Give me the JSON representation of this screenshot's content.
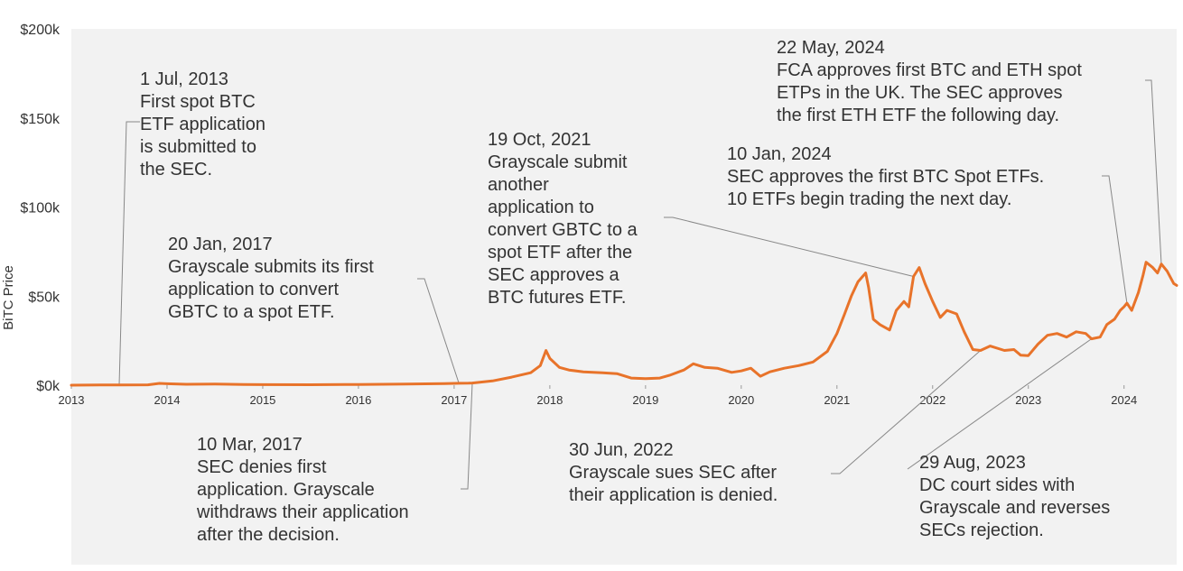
{
  "chart_data": {
    "type": "line",
    "title": "",
    "xlabel": "",
    "ylabel": "BiTC Price",
    "x_ticks": [
      "2013",
      "2014",
      "2015",
      "2016",
      "2017",
      "2018",
      "2019",
      "2020",
      "2021",
      "2022",
      "2023",
      "2024"
    ],
    "y_ticks": [
      "$0k",
      "$50k",
      "$100k",
      "$150k",
      "$200k"
    ],
    "xlim": [
      2013.0,
      2024.55
    ],
    "ylim": [
      0,
      200000
    ],
    "grid": false,
    "colors": {
      "line": "#e8732a",
      "panel": "#f2f2f2",
      "text": "#333333",
      "leader": "#888888"
    },
    "series": [
      {
        "name": "",
        "points": [
          [
            2013.0,
            13
          ],
          [
            2013.3,
            120
          ],
          [
            2013.5,
            80
          ],
          [
            2013.8,
            200
          ],
          [
            2013.92,
            1000
          ],
          [
            2014.0,
            800
          ],
          [
            2014.2,
            500
          ],
          [
            2014.5,
            600
          ],
          [
            2014.8,
            400
          ],
          [
            2015.0,
            300
          ],
          [
            2015.5,
            250
          ],
          [
            2016.0,
            430
          ],
          [
            2016.5,
            650
          ],
          [
            2016.9,
            900
          ],
          [
            2017.0,
            1000
          ],
          [
            2017.15,
            1100
          ],
          [
            2017.19,
            1200
          ],
          [
            2017.4,
            2400
          ],
          [
            2017.6,
            4500
          ],
          [
            2017.8,
            7000
          ],
          [
            2017.9,
            11000
          ],
          [
            2017.96,
            19500
          ],
          [
            2018.0,
            15000
          ],
          [
            2018.1,
            10000
          ],
          [
            2018.2,
            8500
          ],
          [
            2018.35,
            7500
          ],
          [
            2018.55,
            7000
          ],
          [
            2018.7,
            6500
          ],
          [
            2018.85,
            4000
          ],
          [
            2019.0,
            3700
          ],
          [
            2019.15,
            4000
          ],
          [
            2019.25,
            5500
          ],
          [
            2019.4,
            8500
          ],
          [
            2019.5,
            12000
          ],
          [
            2019.62,
            10000
          ],
          [
            2019.75,
            9500
          ],
          [
            2019.9,
            7200
          ],
          [
            2020.0,
            8000
          ],
          [
            2020.1,
            9500
          ],
          [
            2020.2,
            5000
          ],
          [
            2020.3,
            7500
          ],
          [
            2020.45,
            9500
          ],
          [
            2020.6,
            11000
          ],
          [
            2020.75,
            13000
          ],
          [
            2020.9,
            19000
          ],
          [
            2021.0,
            29000
          ],
          [
            2021.08,
            40000
          ],
          [
            2021.15,
            50000
          ],
          [
            2021.22,
            58000
          ],
          [
            2021.3,
            63000
          ],
          [
            2021.33,
            55000
          ],
          [
            2021.38,
            37000
          ],
          [
            2021.45,
            34000
          ],
          [
            2021.55,
            31000
          ],
          [
            2021.62,
            42000
          ],
          [
            2021.7,
            47000
          ],
          [
            2021.75,
            44000
          ],
          [
            2021.8,
            61000
          ],
          [
            2021.86,
            66000
          ],
          [
            2021.92,
            57000
          ],
          [
            2022.0,
            47000
          ],
          [
            2022.08,
            38000
          ],
          [
            2022.15,
            42000
          ],
          [
            2022.25,
            40000
          ],
          [
            2022.33,
            30000
          ],
          [
            2022.42,
            20000
          ],
          [
            2022.5,
            19500
          ],
          [
            2022.6,
            22000
          ],
          [
            2022.75,
            19500
          ],
          [
            2022.85,
            20000
          ],
          [
            2022.92,
            16800
          ],
          [
            2023.0,
            16600
          ],
          [
            2023.1,
            23000
          ],
          [
            2023.2,
            28000
          ],
          [
            2023.3,
            29000
          ],
          [
            2023.4,
            27000
          ],
          [
            2023.5,
            30000
          ],
          [
            2023.6,
            29000
          ],
          [
            2023.66,
            26000
          ],
          [
            2023.75,
            27000
          ],
          [
            2023.82,
            34000
          ],
          [
            2023.9,
            37000
          ],
          [
            2023.96,
            42000
          ],
          [
            2024.0,
            44000
          ],
          [
            2024.03,
            46000
          ],
          [
            2024.08,
            42000
          ],
          [
            2024.15,
            52000
          ],
          [
            2024.2,
            62000
          ],
          [
            2024.23,
            69000
          ],
          [
            2024.3,
            66000
          ],
          [
            2024.35,
            63000
          ],
          [
            2024.39,
            68000
          ],
          [
            2024.45,
            64000
          ],
          [
            2024.52,
            57000
          ],
          [
            2024.55,
            56000
          ]
        ]
      }
    ],
    "annotations": [
      {
        "date": "1 Jul, 2013",
        "text": [
          "First spot BTC",
          "ETF application",
          "is submitted to",
          "the SEC."
        ],
        "x": 2013.5
      },
      {
        "date": "20 Jan, 2017",
        "text": [
          "Grayscale submits its first",
          "application to convert",
          "GBTC to a spot ETF."
        ],
        "x": 2017.05
      },
      {
        "date": "10 Mar, 2017",
        "text": [
          "SEC denies first",
          "application. Grayscale",
          "withdraws their application",
          "after the decision."
        ],
        "x": 2017.19
      },
      {
        "date": "19 Oct, 2021",
        "text": [
          "Grayscale submit",
          "another",
          "application to",
          "convert GBTC to a",
          "spot ETF after the",
          "SEC approves a",
          "BTC futures ETF."
        ],
        "x": 2021.8
      },
      {
        "date": "30 Jun, 2022",
        "text": [
          "Grayscale sues SEC after",
          "their application is denied."
        ],
        "x": 2022.5
      },
      {
        "date": "29 Aug, 2023",
        "text": [
          "DC court sides with",
          "Grayscale and reverses",
          "SECs rejection."
        ],
        "x": 2023.66
      },
      {
        "date": "10 Jan, 2024",
        "text": [
          "SEC approves the first BTC Spot ETFs.",
          "10 ETFs begin trading the next day."
        ],
        "x": 2024.03
      },
      {
        "date": "22 May, 2024",
        "text": [
          "FCA approves first BTC and ETH spot",
          "ETPs in the UK. The SEC approves",
          "the first ETH ETF the following day."
        ],
        "x": 2024.39
      }
    ]
  }
}
